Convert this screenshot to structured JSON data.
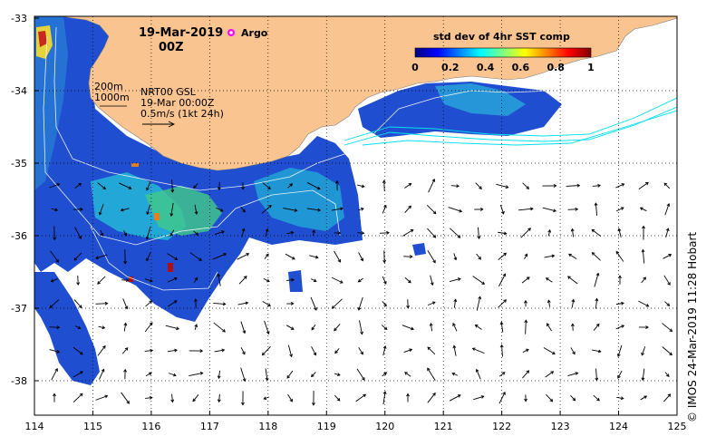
{
  "title": {
    "date": "19-Mar-2019",
    "hour": "00Z",
    "argo_label": "Argo"
  },
  "colorbar": {
    "title": "std dev of 4hr SST comp",
    "ticks": [
      "0",
      "0.2",
      "0.4",
      "0.6",
      "0.8",
      "1"
    ],
    "colors": [
      "#00007f",
      "#0000ff",
      "#0080ff",
      "#00ffff",
      "#80ff80",
      "#ffff00",
      "#ff8000",
      "#ff0000",
      "#7f0000"
    ]
  },
  "contour_legend": {
    "line1": "200m",
    "line2": "1000m"
  },
  "product_info": {
    "line1": "NRT00 GSL",
    "line2": "19-Mar 00:00Z",
    "line3": "0.5m/s (1kt 24h)"
  },
  "axes": {
    "x_ticks": [
      "114",
      "115",
      "116",
      "117",
      "118",
      "119",
      "120",
      "121",
      "122",
      "123",
      "124",
      "125"
    ],
    "y_ticks": [
      "-33",
      "-34",
      "-35",
      "-36",
      "-37",
      "-38"
    ]
  },
  "credit": "© IMOS 24-Mar-2019 11:28 Hobart",
  "colors": {
    "land": "#f9c48f",
    "grid": "#000000",
    "contour": "#ffffff",
    "altimetry_track": "#00e0f0",
    "argo": "#ff00ff"
  }
}
